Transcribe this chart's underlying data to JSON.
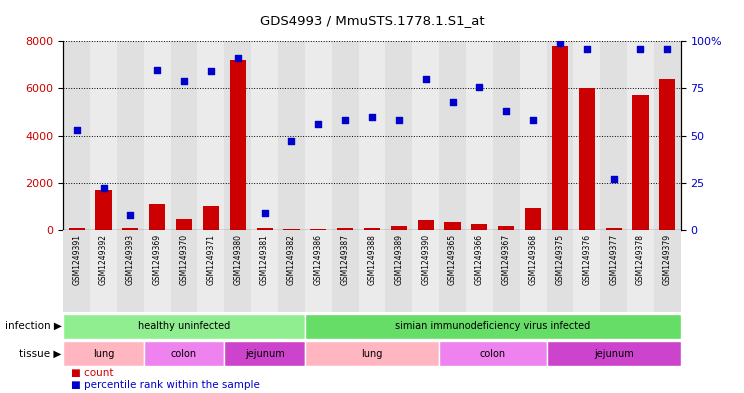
{
  "title": "GDS4993 / MmuSTS.1778.1.S1_at",
  "samples": [
    "GSM1249391",
    "GSM1249392",
    "GSM1249393",
    "GSM1249369",
    "GSM1249370",
    "GSM1249371",
    "GSM1249380",
    "GSM1249381",
    "GSM1249382",
    "GSM1249386",
    "GSM1249387",
    "GSM1249388",
    "GSM1249389",
    "GSM1249390",
    "GSM1249365",
    "GSM1249366",
    "GSM1249367",
    "GSM1249368",
    "GSM1249375",
    "GSM1249376",
    "GSM1249377",
    "GSM1249378",
    "GSM1249379"
  ],
  "counts": [
    60,
    1680,
    80,
    1100,
    460,
    1000,
    7200,
    100,
    50,
    50,
    100,
    100,
    180,
    430,
    320,
    250,
    160,
    920,
    7800,
    6000,
    100,
    5700,
    6400
  ],
  "percentile": [
    53,
    22,
    8,
    85,
    79,
    84,
    91,
    9,
    47,
    56,
    58,
    60,
    58,
    80,
    68,
    76,
    63,
    58,
    99,
    96,
    27,
    96,
    96
  ],
  "infection_groups": [
    {
      "label": "healthy uninfected",
      "start": 0,
      "end": 9,
      "color": "#90EE90"
    },
    {
      "label": "simian immunodeficiency virus infected",
      "start": 9,
      "end": 23,
      "color": "#66DD66"
    }
  ],
  "tissue_groups": [
    {
      "label": "lung",
      "start": 0,
      "end": 3,
      "color": "#FFCCDD"
    },
    {
      "label": "colon",
      "start": 3,
      "end": 6,
      "color": "#EE82EE"
    },
    {
      "label": "jejunum",
      "start": 6,
      "end": 9,
      "color": "#CC44CC"
    },
    {
      "label": "lung",
      "start": 9,
      "end": 14,
      "color": "#FFCCDD"
    },
    {
      "label": "colon",
      "start": 14,
      "end": 18,
      "color": "#EE82EE"
    },
    {
      "label": "jejunum",
      "start": 18,
      "end": 23,
      "color": "#CC44CC"
    }
  ],
  "bar_color": "#CC0000",
  "dot_color": "#0000CC",
  "ylim_left": [
    0,
    8000
  ],
  "ylim_right": [
    0,
    100
  ],
  "yticks_left": [
    0,
    2000,
    4000,
    6000,
    8000
  ],
  "yticks_right": [
    0,
    25,
    50,
    75,
    100
  ],
  "col_bg_even": "#E0E0E0",
  "col_bg_odd": "#EBEBEB"
}
